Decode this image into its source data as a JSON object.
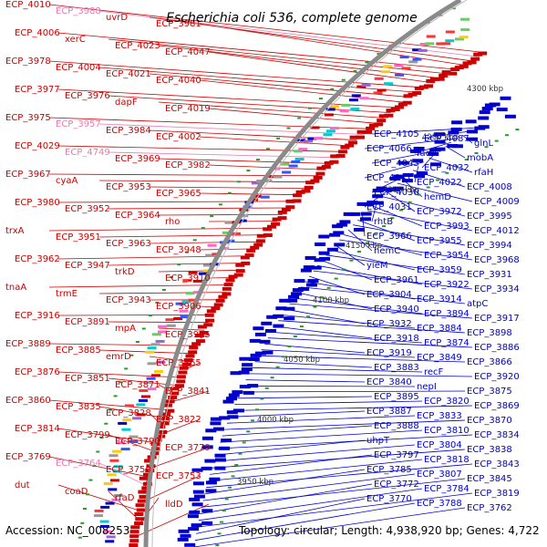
{
  "title": "Escherichia coli 536, complete genome",
  "footer": {
    "accession": "Accession: NC_008253",
    "topology": "Topology: circular; Length: 4,938,920 bp; Genes: 4,722"
  },
  "colors": {
    "forward": "#cc0000",
    "reverse": "#0000cc",
    "pseudo": "#e87ab0",
    "backbone": "#8a8a8a",
    "tick": "#2a9a2a"
  },
  "kbp_labels": [
    "4300 kbp",
    "4250 kbp",
    "4200 kbp",
    "4150 kbp",
    "4100 kbp",
    "4050 kbp",
    "4000 kbp",
    "3950 kbp"
  ],
  "left_labels": [
    {
      "t": "ECP_4010",
      "c": "red"
    },
    {
      "t": "ECP_3988",
      "c": "pink"
    },
    {
      "t": "uvrD",
      "c": "red"
    },
    {
      "t": "ECP_3981",
      "c": "red"
    },
    {
      "t": "ECP_4006",
      "c": "red"
    },
    {
      "t": "xerC",
      "c": "red"
    },
    {
      "t": "ECP_4023",
      "c": "red"
    },
    {
      "t": "ECP_4047",
      "c": "red"
    },
    {
      "t": "ECP_3978",
      "c": "red"
    },
    {
      "t": "ECP_4004",
      "c": "red"
    },
    {
      "t": "ECP_4021",
      "c": "red"
    },
    {
      "t": "ECP_4040",
      "c": "red"
    },
    {
      "t": "ECP_3977",
      "c": "red"
    },
    {
      "t": "ECP_3976",
      "c": "red"
    },
    {
      "t": "dapF",
      "c": "red"
    },
    {
      "t": "ECP_4019",
      "c": "red"
    },
    {
      "t": "ECP_3975",
      "c": "red"
    },
    {
      "t": "ECP_3957",
      "c": "pink"
    },
    {
      "t": "ECP_3984",
      "c": "red"
    },
    {
      "t": "ECP_4002",
      "c": "red"
    },
    {
      "t": "ECP_4029",
      "c": "red"
    },
    {
      "t": "ECP_4749",
      "c": "pink"
    },
    {
      "t": "ECP_3969",
      "c": "red"
    },
    {
      "t": "ECP_3982",
      "c": "red"
    },
    {
      "t": "ECP_3967",
      "c": "red"
    },
    {
      "t": "cyaA",
      "c": "red"
    },
    {
      "t": "ECP_3953",
      "c": "red"
    },
    {
      "t": "ECP_3965",
      "c": "red"
    },
    {
      "t": "ECP_3980",
      "c": "red"
    },
    {
      "t": "ECP_3952",
      "c": "red"
    },
    {
      "t": "ECP_3964",
      "c": "red"
    },
    {
      "t": "rho",
      "c": "red"
    },
    {
      "t": "trxA",
      "c": "red"
    },
    {
      "t": "ECP_3951",
      "c": "red"
    },
    {
      "t": "ECP_3963",
      "c": "red"
    },
    {
      "t": "ECP_3948",
      "c": "red"
    },
    {
      "t": "ECP_3962",
      "c": "red"
    },
    {
      "t": "ECP_3947",
      "c": "red"
    },
    {
      "t": "trkD",
      "c": "red"
    },
    {
      "t": "ECP_3910",
      "c": "red"
    },
    {
      "t": "tnaA",
      "c": "red"
    },
    {
      "t": "trmE",
      "c": "red"
    },
    {
      "t": "ECP_3943",
      "c": "red"
    },
    {
      "t": "ECP_3906",
      "c": "red"
    },
    {
      "t": "ECP_3916",
      "c": "red"
    },
    {
      "t": "ECP_3891",
      "c": "red"
    },
    {
      "t": "mpA",
      "c": "red"
    },
    {
      "t": "ECP_3915",
      "c": "red"
    },
    {
      "t": "ECP_3889",
      "c": "red"
    },
    {
      "t": "ECP_3885",
      "c": "red"
    },
    {
      "t": "emrD",
      "c": "red"
    },
    {
      "t": "ECP_3865",
      "c": "red"
    },
    {
      "t": "ECP_3876",
      "c": "red"
    },
    {
      "t": "ECP_3851",
      "c": "red"
    },
    {
      "t": "ECP_3871",
      "c": "red"
    },
    {
      "t": "ECP_3841",
      "c": "red"
    },
    {
      "t": "ECP_3860",
      "c": "red"
    },
    {
      "t": "ECP_3835",
      "c": "red"
    },
    {
      "t": "ECP_3828",
      "c": "red"
    },
    {
      "t": "ECP_3822",
      "c": "red"
    },
    {
      "t": "ECP_3814",
      "c": "red"
    },
    {
      "t": "ECP_3799",
      "c": "red"
    },
    {
      "t": "ECP_3790",
      "c": "red"
    },
    {
      "t": "ECP_3779",
      "c": "red"
    },
    {
      "t": "ECP_3769",
      "c": "red"
    },
    {
      "t": "ECP_3764",
      "c": "pink"
    },
    {
      "t": "ECP_3750",
      "c": "red"
    },
    {
      "t": "ECP_3753",
      "c": "red"
    },
    {
      "t": "dut",
      "c": "red"
    },
    {
      "t": "coaD",
      "c": "red"
    },
    {
      "t": "rfaD",
      "c": "red"
    },
    {
      "t": "lldD",
      "c": "red"
    }
  ],
  "right_labels": [
    "ECP_4105",
    "ECP_4087",
    "glnL",
    "ECP_4066",
    "fadA",
    "mobA",
    "ECP_4043",
    "ECP_4032",
    "rfaH",
    "ECP_4041",
    "ECP_4022",
    "ECP_4008",
    "ECP_4030",
    "hemD",
    "ECP_4009",
    "ECP_4031",
    "ECP_3972",
    "ECP_3995",
    "rhtB",
    "ECP_3993",
    "ECP_4012",
    "ECP_3966",
    "ECP_3955",
    "ECP_3994",
    "hemC",
    "ECP_3954",
    "ECP_3968",
    "yieM",
    "ECP_3959",
    "ECP_3931",
    "ECP_3961",
    "ECP_3922",
    "ECP_3934",
    "ECP_3904",
    "ECP_3914",
    "atpC",
    "ECP_3940",
    "ECP_3894",
    "ECP_3917",
    "ECP_3932",
    "ECP_3884",
    "ECP_3898",
    "ECP_3918",
    "ECP_3874",
    "ECP_3886",
    "ECP_3919",
    "ECP_3849",
    "ECP_3866",
    "ECP_3883",
    "recF",
    "ECP_3920",
    "ECP_3840",
    "nepI",
    "ECP_3875",
    "ECP_3895",
    "ECP_3820",
    "ECP_3869",
    "ECP_3887",
    "ECP_3833",
    "ECP_3870",
    "ECP_3888",
    "ECP_3810",
    "ECP_3834",
    "uhpT",
    "ECP_3804",
    "ECP_3838",
    "ECP_3797",
    "ECP_3818",
    "ECP_3843",
    "ECP_3785",
    "ECP_3807",
    "ECP_3845",
    "ECP_3772",
    "ECP_3784",
    "ECP_3819",
    "ECP_3770",
    "ECP_3788",
    "ECP_3762"
  ]
}
